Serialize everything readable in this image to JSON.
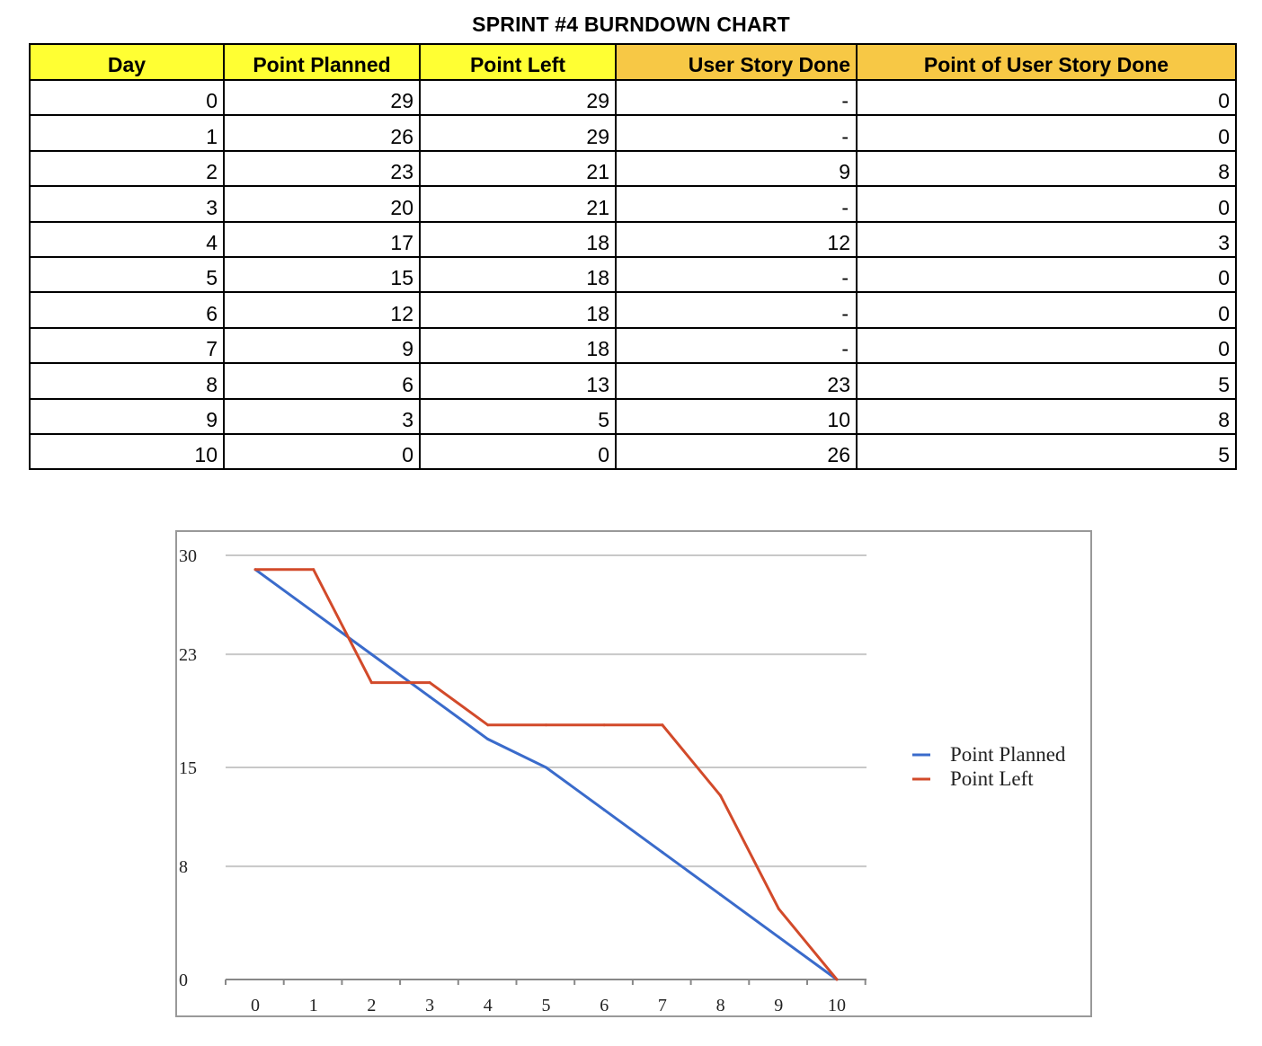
{
  "title": "SPRINT #4 BURNDOWN CHART",
  "table": {
    "headers": [
      "Day",
      "Point Planned",
      "Point Left",
      "User Story Done",
      "Point of User Story Done"
    ],
    "header_colors": [
      "#ffff33",
      "#ffff33",
      "#ffff33",
      "#f7c845",
      "#f7c845"
    ],
    "rows": [
      [
        "0",
        "29",
        "29",
        "-",
        "0"
      ],
      [
        "1",
        "26",
        "29",
        "-",
        "0"
      ],
      [
        "2",
        "23",
        "21",
        "9",
        "8"
      ],
      [
        "3",
        "20",
        "21",
        "-",
        "0"
      ],
      [
        "4",
        "17",
        "18",
        "12",
        "3"
      ],
      [
        "5",
        "15",
        "18",
        "-",
        "0"
      ],
      [
        "6",
        "12",
        "18",
        "-",
        "0"
      ],
      [
        "7",
        "9",
        "18",
        "-",
        "0"
      ],
      [
        "8",
        "6",
        "13",
        "23",
        "5"
      ],
      [
        "9",
        "3",
        "5",
        "10",
        "8"
      ],
      [
        "10",
        "0",
        "0",
        "26",
        "5"
      ]
    ]
  },
  "chart_data": {
    "type": "line",
    "title": "",
    "xlabel": "",
    "ylabel": "",
    "x": [
      0,
      1,
      2,
      3,
      4,
      5,
      6,
      7,
      8,
      9,
      10
    ],
    "x_tick_labels": [
      "0",
      "1",
      "2",
      "3",
      "4",
      "5",
      "6",
      "7",
      "8",
      "9",
      "10"
    ],
    "y_tick_labels": [
      "0",
      "8",
      "15",
      "23",
      "30"
    ],
    "ylim": [
      0,
      30
    ],
    "grid": true,
    "legend": "right",
    "series": [
      {
        "name": "Point Planned",
        "color": "#3a6bcb",
        "values": [
          29,
          26,
          23,
          20,
          17,
          15,
          12,
          9,
          6,
          3,
          0
        ]
      },
      {
        "name": "Point Left",
        "color": "#d24a2a",
        "values": [
          29,
          29,
          21,
          21,
          18,
          18,
          18,
          18,
          13,
          5,
          0
        ]
      }
    ]
  }
}
